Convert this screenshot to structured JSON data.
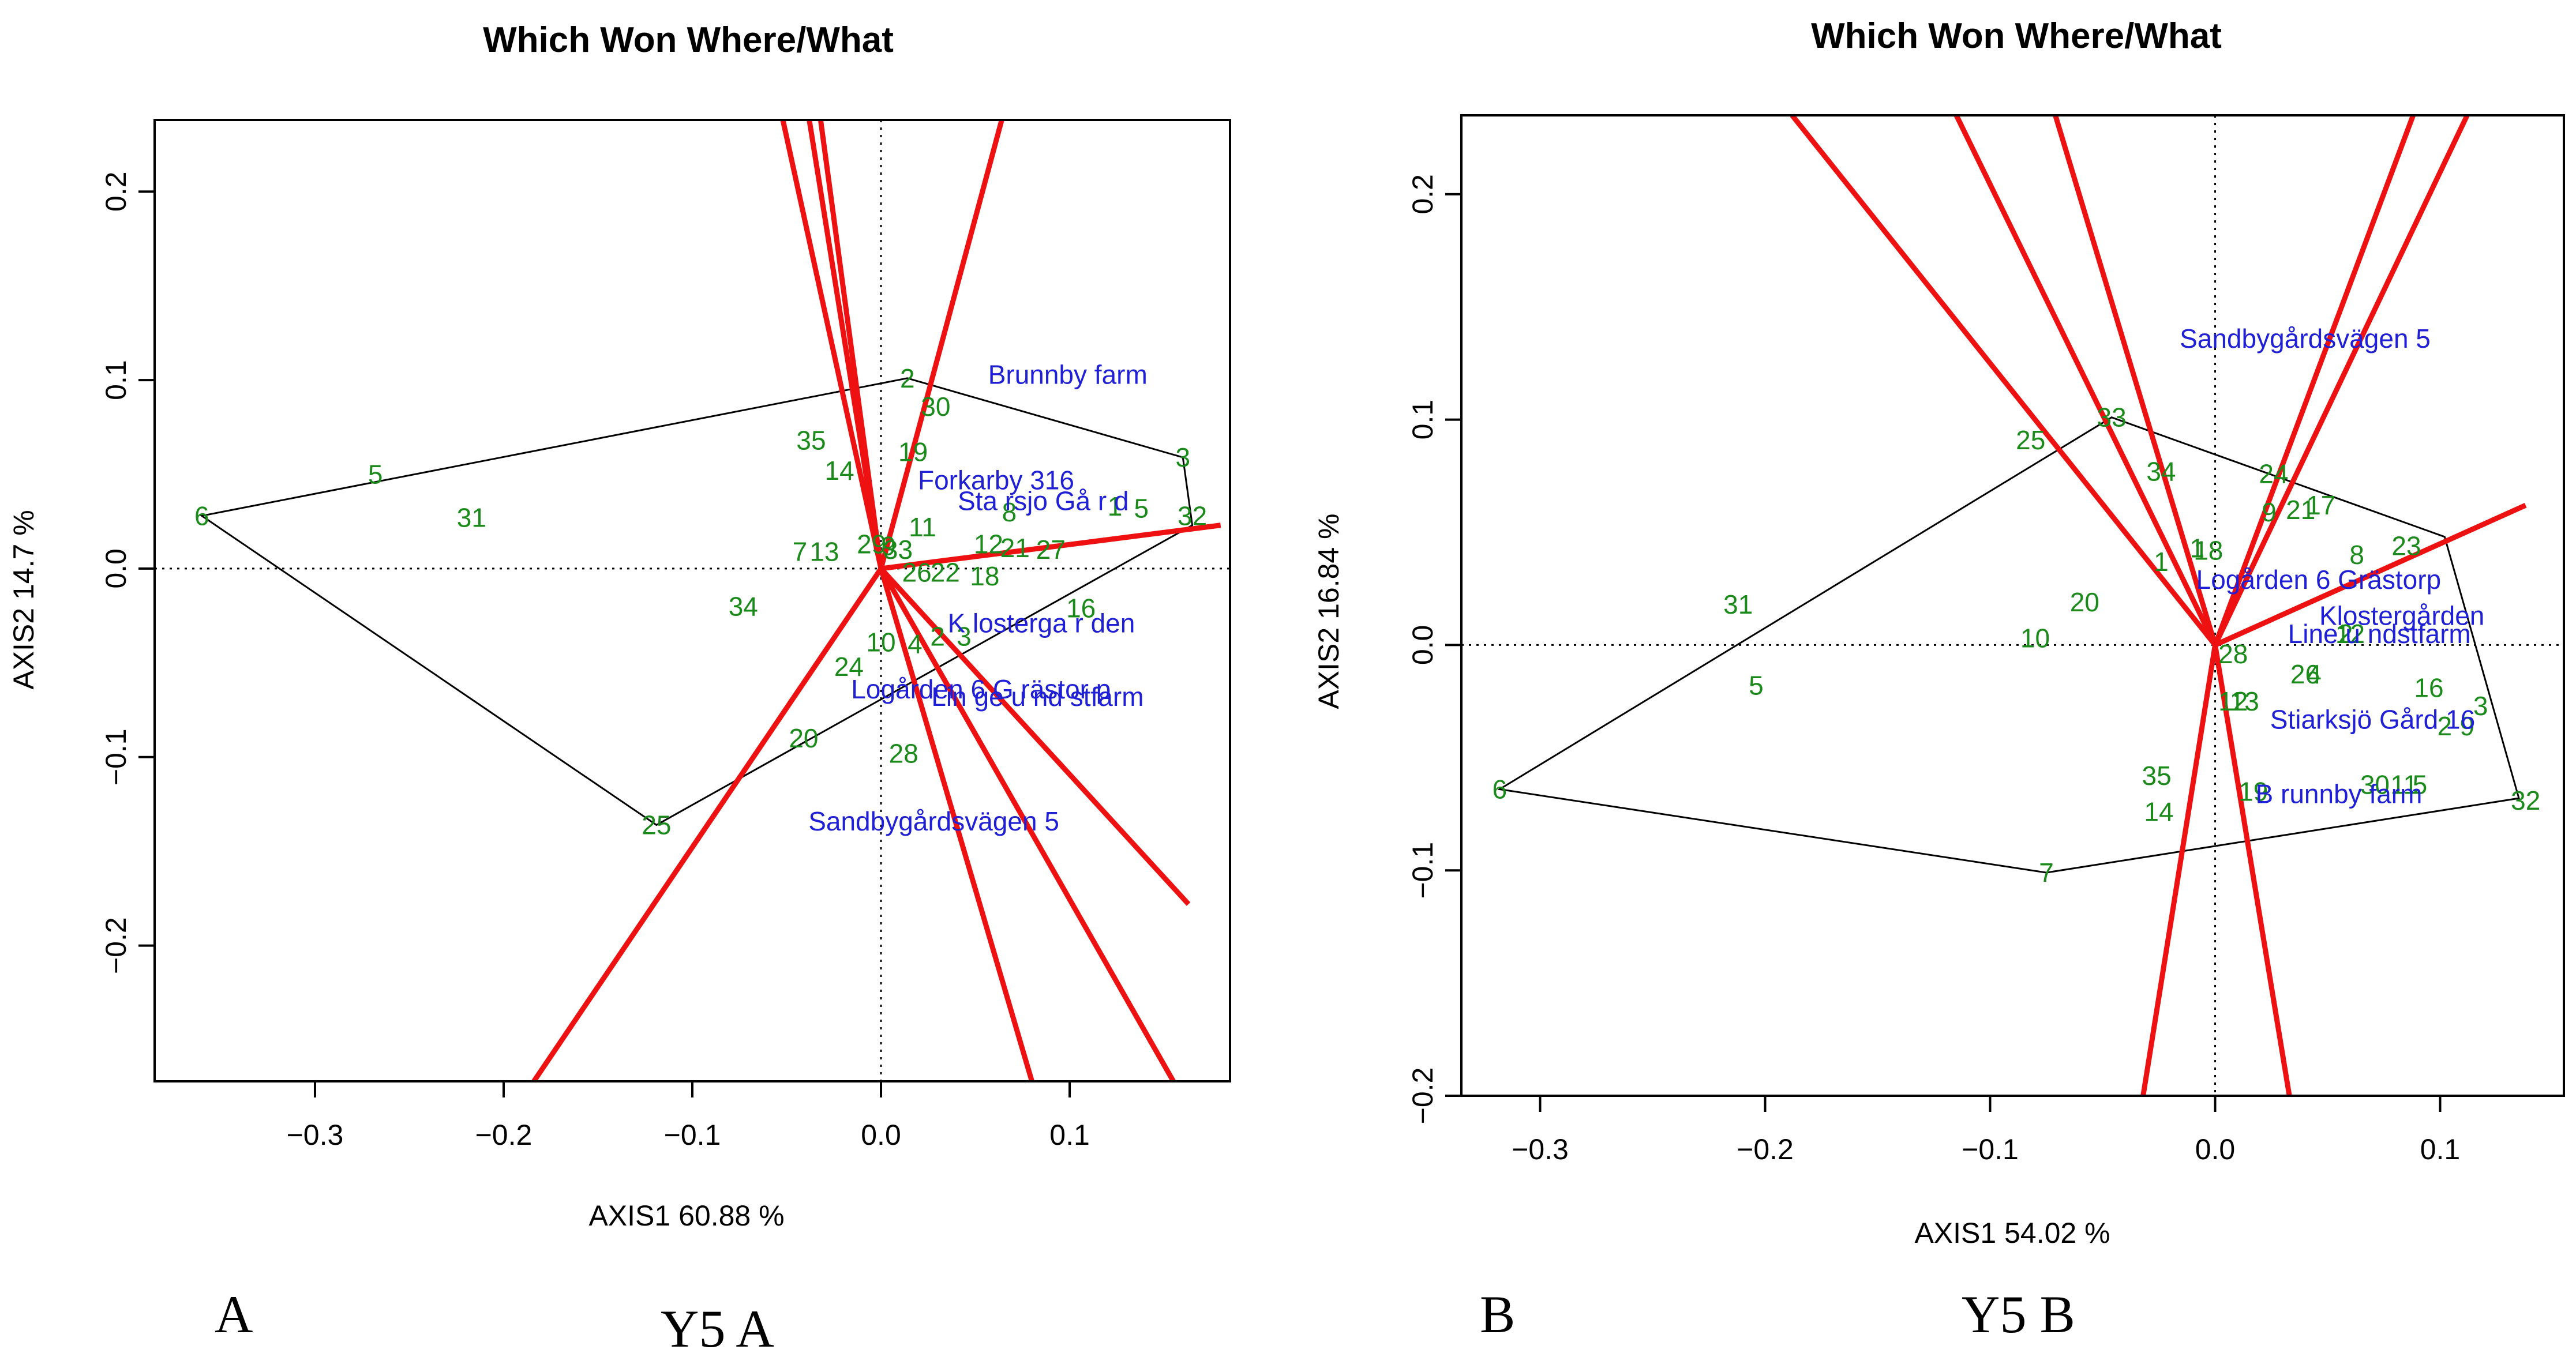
{
  "colors": {
    "genotype": "#1a8a1a",
    "environment": "#1f1fd6",
    "ray": "#ee1111",
    "hull": "#000000"
  },
  "panel_tags": {
    "left": "A",
    "right": "B"
  },
  "captions": {
    "left": "Y5 A",
    "right": "Y5 B"
  },
  "chart_data": [
    {
      "type": "scatter",
      "title": "Which Won Where/What",
      "xlabel": "AXIS1 60.88 %",
      "ylabel": "AXIS2 14.7 %",
      "xlim": [
        -0.385,
        0.185
      ],
      "ylim": [
        -0.272,
        0.238
      ],
      "xticks": [
        -0.3,
        -0.2,
        -0.1,
        0.0,
        0.1
      ],
      "yticks": [
        -0.2,
        -0.1,
        0.0,
        0.1,
        0.2
      ],
      "xtick_labels": [
        "−0.3",
        "−0.2",
        "−0.1",
        "0.0",
        "0.1"
      ],
      "ytick_labels": [
        "−0.2",
        "−0.1",
        "0.0",
        "0.1",
        "0.2"
      ],
      "genotypes": [
        {
          "label": "2",
          "x": 0.014,
          "y": 0.101
        },
        {
          "label": "30",
          "x": 0.029,
          "y": 0.086
        },
        {
          "label": "35",
          "x": -0.037,
          "y": 0.068
        },
        {
          "label": "19",
          "x": 0.017,
          "y": 0.062
        },
        {
          "label": "14",
          "x": -0.022,
          "y": 0.052
        },
        {
          "label": "3",
          "x": 0.16,
          "y": 0.059
        },
        {
          "label": "5",
          "x": -0.268,
          "y": 0.05
        },
        {
          "label": "6",
          "x": -0.36,
          "y": 0.028
        },
        {
          "label": "31",
          "x": -0.217,
          "y": 0.027
        },
        {
          "label": "8",
          "x": 0.068,
          "y": 0.03
        },
        {
          "label": "1",
          "x": 0.124,
          "y": 0.033
        },
        {
          "label": "5",
          "x": 0.138,
          "y": 0.032
        },
        {
          "label": "32",
          "x": 0.165,
          "y": 0.028
        },
        {
          "label": "11",
          "x": 0.022,
          "y": 0.022
        },
        {
          "label": "7",
          "x": -0.043,
          "y": 0.009
        },
        {
          "label": "13",
          "x": -0.03,
          "y": 0.009
        },
        {
          "label": "29",
          "x": -0.005,
          "y": 0.013
        },
        {
          "label": "9",
          "x": 0.004,
          "y": 0.012
        },
        {
          "label": "33",
          "x": 0.009,
          "y": 0.01
        },
        {
          "label": "12",
          "x": 0.057,
          "y": 0.013
        },
        {
          "label": "21",
          "x": 0.071,
          "y": 0.011
        },
        {
          "label": "27",
          "x": 0.09,
          "y": 0.01
        },
        {
          "label": "26",
          "x": 0.019,
          "y": -0.002
        },
        {
          "label": "22",
          "x": 0.034,
          "y": -0.002
        },
        {
          "label": "18",
          "x": 0.055,
          "y": -0.004
        },
        {
          "label": "34",
          "x": -0.073,
          "y": -0.02
        },
        {
          "label": "16",
          "x": 0.106,
          "y": -0.021
        },
        {
          "label": "10",
          "x": 0.0,
          "y": -0.039
        },
        {
          "label": "4",
          "x": 0.018,
          "y": -0.04
        },
        {
          "label": "2",
          "x": 0.03,
          "y": -0.036
        },
        {
          "label": "3",
          "x": 0.044,
          "y": -0.036
        },
        {
          "label": "24",
          "x": -0.017,
          "y": -0.052
        },
        {
          "label": "20",
          "x": -0.041,
          "y": -0.09
        },
        {
          "label": "28",
          "x": 0.012,
          "y": -0.098
        },
        {
          "label": "25",
          "x": -0.119,
          "y": -0.136
        }
      ],
      "environments": [
        {
          "label": "Brunnby farm",
          "x": 0.099,
          "y": 0.103
        },
        {
          "label": "Forkarby 316",
          "x": 0.061,
          "y": 0.047
        },
        {
          "label": "Sta  rsjo Gå r d",
          "x": 0.086,
          "y": 0.036
        },
        {
          "label": "K losterga  r den",
          "x": 0.085,
          "y": -0.029
        },
        {
          "label": "Logården 6 G  rästor p",
          "x": 0.053,
          "y": -0.064
        },
        {
          "label": "Lin  ge  u  nd stfarm",
          "x": 0.083,
          "y": -0.068
        },
        {
          "label": "Sandbygårdsvägen 5",
          "x": 0.028,
          "y": -0.134
        }
      ],
      "hull": [
        [
          -0.36,
          0.028
        ],
        [
          0.014,
          0.101
        ],
        [
          0.16,
          0.059
        ],
        [
          0.165,
          0.023
        ],
        [
          -0.119,
          -0.136
        ]
      ],
      "ray_ends": [
        [
          -0.052,
          0.238
        ],
        [
          -0.038,
          0.238
        ],
        [
          0.064,
          0.238
        ],
        [
          -0.032,
          0.238
        ],
        [
          0.18,
          0.023
        ],
        [
          0.163,
          -0.178
        ],
        [
          0.08,
          -0.272
        ],
        [
          0.155,
          -0.272
        ],
        [
          -0.184,
          -0.272
        ]
      ]
    },
    {
      "type": "scatter",
      "title": "Which Won Where/What",
      "xlabel": "AXIS1 54.02 %",
      "ylabel": "AXIS2 16.84 %",
      "xlim": [
        -0.335,
        0.155
      ],
      "ylim": [
        -0.2,
        0.235
      ],
      "xticks": [
        -0.3,
        -0.2,
        -0.1,
        0.0,
        0.1
      ],
      "yticks": [
        -0.2,
        -0.1,
        0.0,
        0.1,
        0.2
      ],
      "xtick_labels": [
        "−0.3",
        "−0.2",
        "−0.1",
        "0.0",
        "0.1"
      ],
      "ytick_labels": [
        "−0.2",
        "−0.1",
        "0.0",
        "0.1",
        "0.2"
      ],
      "genotypes": [
        {
          "label": "33",
          "x": -0.046,
          "y": 0.101
        },
        {
          "label": "25",
          "x": -0.082,
          "y": 0.091
        },
        {
          "label": "34",
          "x": -0.024,
          "y": 0.077
        },
        {
          "label": "24",
          "x": 0.026,
          "y": 0.076
        },
        {
          "label": "17",
          "x": 0.047,
          "y": 0.062
        },
        {
          "label": "9",
          "x": 0.024,
          "y": 0.059
        },
        {
          "label": "21",
          "x": 0.038,
          "y": 0.06
        },
        {
          "label": "23",
          "x": 0.085,
          "y": 0.044
        },
        {
          "label": "8",
          "x": 0.063,
          "y": 0.04
        },
        {
          "label": "1",
          "x": -0.008,
          "y": 0.043
        },
        {
          "label": "18",
          "x": -0.003,
          "y": 0.042
        },
        {
          "label": "1",
          "x": -0.024,
          "y": 0.037
        },
        {
          "label": "31",
          "x": -0.212,
          "y": 0.018
        },
        {
          "label": "20",
          "x": -0.058,
          "y": 0.019
        },
        {
          "label": "10",
          "x": -0.08,
          "y": 0.003
        },
        {
          "label": "28",
          "x": 0.008,
          "y": -0.004
        },
        {
          "label": "2",
          "x": 0.058,
          "y": 0.005
        },
        {
          "label": "12",
          "x": 0.06,
          "y": 0.005
        },
        {
          "label": "26",
          "x": 0.04,
          "y": -0.013
        },
        {
          "label": "4",
          "x": 0.044,
          "y": -0.013
        },
        {
          "label": "5",
          "x": -0.204,
          "y": -0.018
        },
        {
          "label": "16",
          "x": 0.095,
          "y": -0.019
        },
        {
          "label": "12",
          "x": 0.008,
          "y": -0.025
        },
        {
          "label": "13",
          "x": 0.013,
          "y": -0.025
        },
        {
          "label": "3",
          "x": 0.118,
          "y": -0.027
        },
        {
          "label": "2",
          "x": 0.102,
          "y": -0.036
        },
        {
          "label": "9",
          "x": 0.112,
          "y": -0.036
        },
        {
          "label": "35",
          "x": -0.026,
          "y": -0.058
        },
        {
          "label": "6",
          "x": -0.318,
          "y": -0.064
        },
        {
          "label": "19",
          "x": 0.017,
          "y": -0.065
        },
        {
          "label": "30",
          "x": 0.071,
          "y": -0.062
        },
        {
          "label": "11",
          "x": 0.084,
          "y": -0.062
        },
        {
          "label": "5",
          "x": 0.091,
          "y": -0.062
        },
        {
          "label": "14",
          "x": -0.025,
          "y": -0.074
        },
        {
          "label": "32",
          "x": 0.138,
          "y": -0.069
        },
        {
          "label": "7",
          "x": -0.075,
          "y": -0.101
        }
      ],
      "environments": [
        {
          "label": "Sandbygårdsvägen 5",
          "x": 0.04,
          "y": 0.136
        },
        {
          "label": "Logården 6 Grästorp",
          "x": 0.046,
          "y": 0.029
        },
        {
          "label": "Klostergården",
          "x": 0.083,
          "y": 0.013
        },
        {
          "label": "Line  u ndstfarm",
          "x": 0.073,
          "y": 0.005
        },
        {
          "label": "Stiarksjö Gård 16",
          "x": 0.07,
          "y": -0.033
        },
        {
          "label": "B  runnby farm",
          "x": 0.055,
          "y": -0.066
        }
      ],
      "hull": [
        [
          -0.318,
          -0.064
        ],
        [
          -0.046,
          0.101
        ],
        [
          0.102,
          0.048
        ],
        [
          0.135,
          -0.068
        ],
        [
          -0.075,
          -0.101
        ]
      ],
      "ray_ends": [
        [
          -0.188,
          0.235
        ],
        [
          -0.115,
          0.235
        ],
        [
          -0.071,
          0.235
        ],
        [
          0.088,
          0.235
        ],
        [
          0.112,
          0.235
        ],
        [
          0.138,
          0.062
        ],
        [
          -0.032,
          -0.2
        ],
        [
          0.033,
          -0.2
        ]
      ]
    }
  ]
}
